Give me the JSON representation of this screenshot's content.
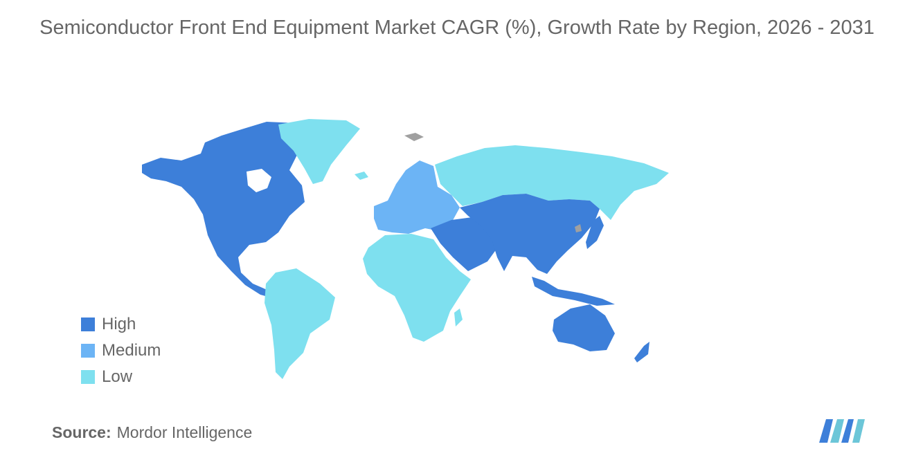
{
  "title": "Semiconductor Front End Equipment Market CAGR (%), Growth Rate by Region, 2026 - 2031",
  "legend": [
    {
      "label": "High",
      "color": "#3d7fd9"
    },
    {
      "label": "Medium",
      "color": "#6cb4f5"
    },
    {
      "label": "Low",
      "color": "#7ee0ef"
    }
  ],
  "no_data_color": "#a0a0a0",
  "regions": {
    "north_america": "High",
    "greenland": "Low",
    "south_america": "Low",
    "europe": "Medium",
    "russia": "Low",
    "africa": "Low",
    "middle_east": "High",
    "asia_pacific": "High",
    "oceania": "High"
  },
  "source": {
    "label": "Source:",
    "text": "Mordor Intelligence"
  },
  "logo": {
    "name": "mordor-intelligence-logo",
    "colors": [
      "#3d7fd9",
      "#6cc6d8"
    ]
  }
}
